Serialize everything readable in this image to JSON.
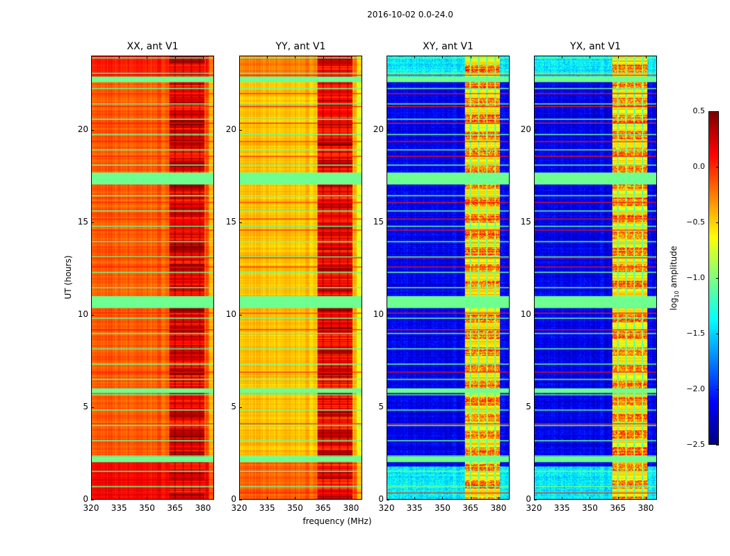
{
  "figure": {
    "suptitle": "2016-10-02 0.0-24.0"
  },
  "chart_data": {
    "type": "heatmap",
    "title": "2016-10-02 0.0-24.0",
    "xlabel": "frequency (MHz)",
    "ylabel": "UT (hours)",
    "xlim": [
      320,
      386
    ],
    "ylim": [
      0,
      24
    ],
    "x_ticks": [
      "320",
      "335",
      "350",
      "365",
      "380"
    ],
    "x_tick_values": [
      320,
      335,
      350,
      365,
      380
    ],
    "y_ticks": [
      "0",
      "5",
      "10",
      "15",
      "20"
    ],
    "y_tick_values": [
      0,
      5,
      10,
      15,
      20
    ],
    "panels": [
      {
        "title": "XX, ant V1",
        "base_level": -0.15,
        "band_level": 0.15,
        "band_mhz": [
          362,
          381
        ]
      },
      {
        "title": "YY, ant V1",
        "base_level": -0.45,
        "band_level": 0.1,
        "band_mhz": [
          362,
          381
        ]
      },
      {
        "title": "XY, ant V1",
        "base_level": -2.3,
        "band_level": -0.6,
        "band_mhz": [
          362,
          381
        ]
      },
      {
        "title": "YX, ant V1",
        "base_level": -2.3,
        "band_level": -0.6,
        "band_mhz": [
          362,
          381
        ]
      }
    ],
    "flagged_ut_ranges": [
      [
        17.05,
        17.7
      ],
      [
        10.35,
        11.0
      ],
      [
        5.75,
        6.0
      ],
      [
        2.0,
        2.3
      ],
      [
        22.6,
        22.9
      ]
    ],
    "red_line_ut": [
      0.35,
      4.1,
      6.9,
      9.2,
      10.1,
      12.6,
      13.1,
      14.6,
      15.2,
      16.1,
      18.6,
      19.4,
      20.4,
      21.3,
      22.0,
      23.0
    ],
    "colorbar": {
      "label": "amplitude",
      "label_prefix": "log",
      "label_sub": "10",
      "range": [
        -2.5,
        0.5
      ],
      "ticks": [
        "0.5",
        "0.0",
        "−0.5",
        "−1.0",
        "−1.5",
        "−2.0",
        "−2.5"
      ],
      "tick_values": [
        0.5,
        0.0,
        -0.5,
        -1.0,
        -1.5,
        -2.0,
        -2.5
      ],
      "colormap": "jet"
    }
  }
}
